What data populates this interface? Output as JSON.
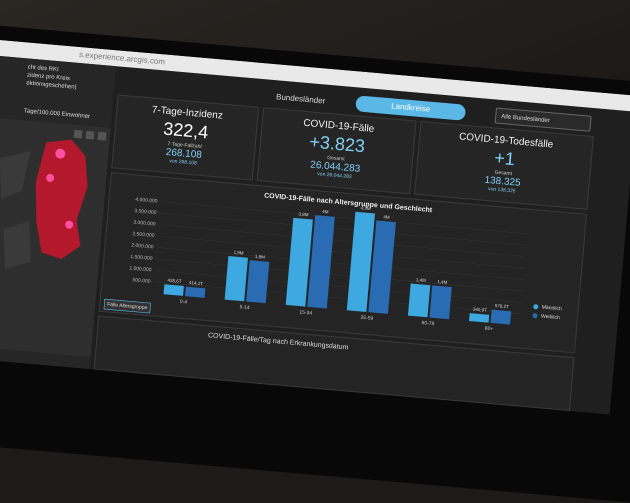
{
  "browser": {
    "url": "s.experience.arcgis.com"
  },
  "sidebar": {
    "lines": [
      "cht des RKI",
      "zidenz pro Kreis",
      "ektionsgeschehen)"
    ],
    "map_title": "Tage/100.000 Einwohner"
  },
  "tabs": {
    "left": "Bundesländer",
    "active": "Landkreise",
    "dropdown": "Alle Bundesländer"
  },
  "cards": [
    {
      "title": "7-Tage-Inzidenz",
      "value": "322,4",
      "sub_label": "7-Tage-Fallzahl",
      "sub_value": "268.108",
      "note": "von 268.108"
    },
    {
      "title": "COVID-19-Fälle",
      "value": "+3.823",
      "sub_label": "Gesamt",
      "sub_value": "26.044.283",
      "note": "von 26.044.283"
    },
    {
      "title": "COVID-19-Todesfälle",
      "value": "+1",
      "sub_label": "Gesamt",
      "sub_value": "138.325",
      "note": "von 138.325"
    }
  ],
  "age_chart": {
    "type": "bar",
    "title": "COVID-19-Fälle nach Altersgruppe und Geschlecht",
    "categories": [
      "0-4",
      "5-14",
      "15-34",
      "35-59",
      "60-79",
      "80+"
    ],
    "series": [
      {
        "name": "Männlich",
        "color": "#3ea8e0",
        "values": [
          435600,
          1900000,
          3800000,
          4300000,
          1400000,
          340900
        ],
        "value_labels": [
          "435,6T",
          "1,9M",
          "3,8M",
          "4,3M",
          "1,4M",
          "340,9T"
        ]
      },
      {
        "name": "Weiblich",
        "color": "#2a6cb3",
        "values": [
          414100,
          1800000,
          4000000,
          4000000,
          1400000,
          578200
        ],
        "value_labels": [
          "414,1T",
          "1,8M",
          "4M",
          "4M",
          "1,4M",
          "578,2T"
        ]
      }
    ],
    "ylim": [
      0,
      4000000
    ],
    "yticks": [
      {
        "value": 500000,
        "label": "500.000"
      },
      {
        "value": 1000000,
        "label": "1.000.000"
      },
      {
        "value": 1500000,
        "label": "1.500.000"
      },
      {
        "value": 2000000,
        "label": "2.000.000"
      },
      {
        "value": 2500000,
        "label": "2.500.000"
      },
      {
        "value": 3000000,
        "label": "3.000.000"
      },
      {
        "value": 3500000,
        "label": "3.500.000"
      },
      {
        "value": 4000000,
        "label": "4.000.000"
      }
    ],
    "tab": "Fälle Altersgruppe"
  },
  "daily_chart": {
    "title": "COVID-19-Fälle/Tag nach Erkrankungsdatum"
  }
}
